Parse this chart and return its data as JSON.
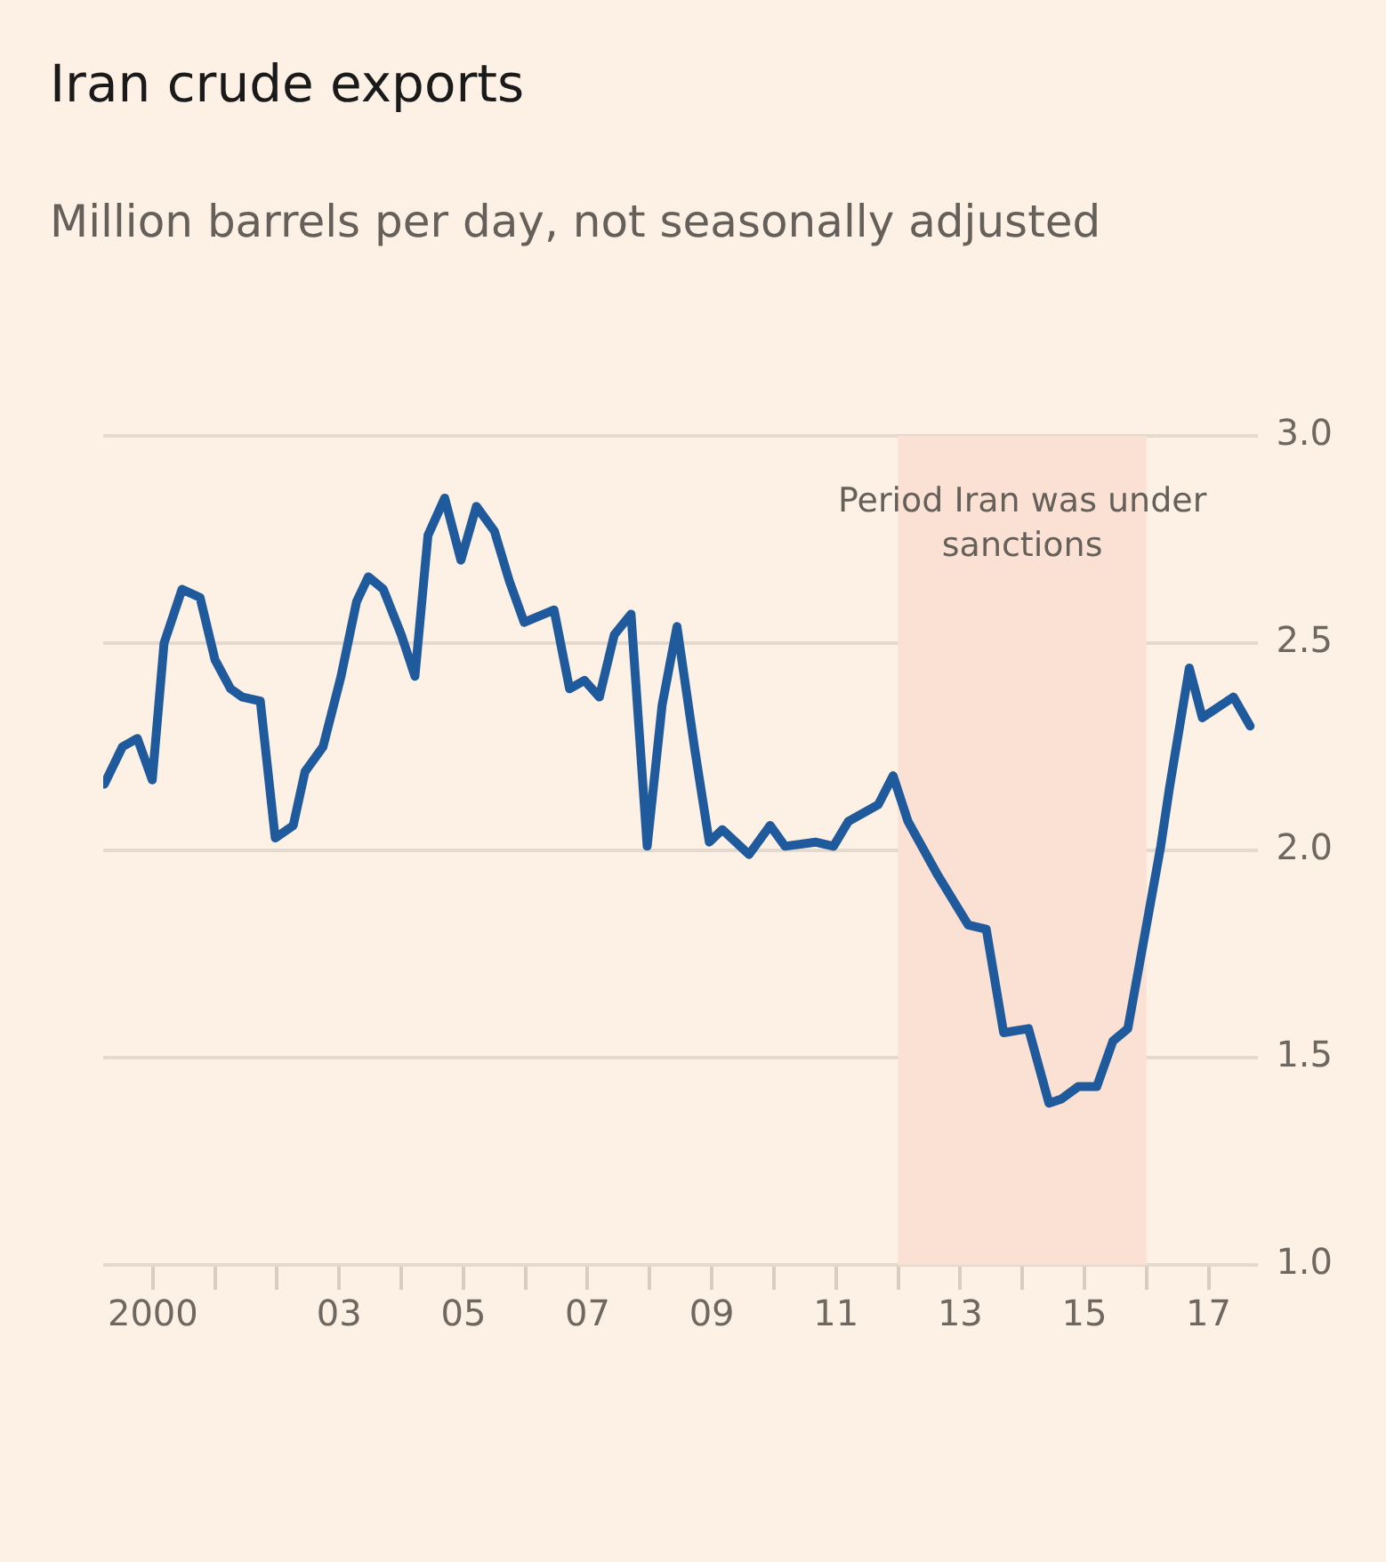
{
  "chart_data": {
    "type": "line",
    "title": "Iran crude exports",
    "subtitle": "Million barrels per day, not seasonally adjusted",
    "x": [
      1999.22,
      1999.51,
      1999.75,
      1999.99,
      2000.18,
      2000.47,
      2000.76,
      2001.0,
      2001.25,
      2001.44,
      2001.73,
      2001.97,
      2002.26,
      2002.45,
      2002.74,
      2003.03,
      2003.28,
      2003.47,
      2003.71,
      2004.0,
      2004.22,
      2004.43,
      2004.7,
      2004.96,
      2005.21,
      2005.5,
      2005.74,
      2005.98,
      2006.46,
      2006.71,
      2006.95,
      2007.19,
      2007.43,
      2007.7,
      2007.96,
      2008.2,
      2008.44,
      2008.73,
      2008.96,
      2009.17,
      2009.6,
      2009.94,
      2010.18,
      2010.67,
      2010.96,
      2011.2,
      2011.68,
      2011.92,
      2012.16,
      2012.64,
      2013.13,
      2013.42,
      2013.7,
      2014.1,
      2014.43,
      2014.63,
      2014.9,
      2015.2,
      2015.46,
      2015.7,
      2016.23,
      2016.37,
      2016.69,
      2016.9,
      2017.4,
      2017.67
    ],
    "series": [
      {
        "color": "#1f5a9c",
        "values": [
          2.16,
          2.25,
          2.27,
          2.17,
          2.5,
          2.63,
          2.61,
          2.46,
          2.39,
          2.37,
          2.36,
          2.03,
          2.06,
          2.19,
          2.25,
          2.42,
          2.6,
          2.66,
          2.63,
          2.52,
          2.42,
          2.76,
          2.85,
          2.7,
          2.83,
          2.77,
          2.65,
          2.55,
          2.58,
          2.39,
          2.41,
          2.37,
          2.52,
          2.57,
          2.01,
          2.35,
          2.54,
          2.24,
          2.02,
          2.05,
          1.99,
          2.06,
          2.01,
          2.02,
          2.01,
          2.07,
          2.11,
          2.18,
          2.07,
          1.94,
          1.82,
          1.81,
          1.56,
          1.57,
          1.39,
          1.4,
          1.43,
          1.43,
          1.54,
          1.57,
          2.01,
          2.15,
          2.44,
          2.32,
          2.37,
          2.3
        ]
      }
    ],
    "xlim": [
      1999.2,
      2017.8
    ],
    "xticks": [
      {
        "value": 2000,
        "label": "2000"
      },
      {
        "value": 2001,
        "label": null
      },
      {
        "value": 2002,
        "label": null
      },
      {
        "value": 2003,
        "label": "03"
      },
      {
        "value": 2004,
        "label": null
      },
      {
        "value": 2005,
        "label": "05"
      },
      {
        "value": 2006,
        "label": null
      },
      {
        "value": 2007,
        "label": "07"
      },
      {
        "value": 2008,
        "label": null
      },
      {
        "value": 2009,
        "label": "09"
      },
      {
        "value": 2010,
        "label": null
      },
      {
        "value": 2011,
        "label": "11"
      },
      {
        "value": 2012,
        "label": null
      },
      {
        "value": 2013,
        "label": "13"
      },
      {
        "value": 2014,
        "label": null
      },
      {
        "value": 2015,
        "label": "15"
      },
      {
        "value": 2016,
        "label": null
      },
      {
        "value": 2017,
        "label": "17"
      }
    ],
    "ylim": [
      1.0,
      3.0
    ],
    "yticks": [
      {
        "value": 1.0,
        "label": "1.0"
      },
      {
        "value": 1.5,
        "label": "1.5"
      },
      {
        "value": 2.0,
        "label": "2.0"
      },
      {
        "value": 2.5,
        "label": "2.5"
      },
      {
        "value": 3.0,
        "label": "3.0"
      }
    ],
    "bands": [
      {
        "axis": "x",
        "from": 2012,
        "to": 2016,
        "label": "Period Iran was under sanctions",
        "color": "#fbe1d3"
      }
    ],
    "grid": "y",
    "legend": false,
    "line_style": "solid",
    "marker": "none"
  }
}
